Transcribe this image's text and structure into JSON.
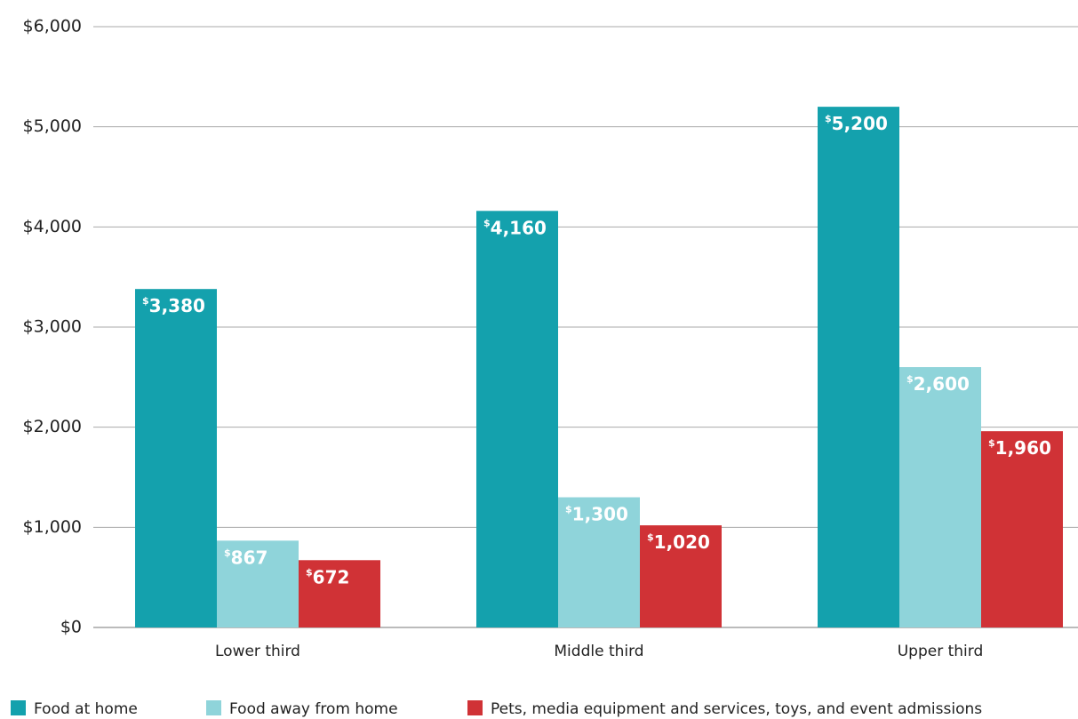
{
  "chart_data": {
    "type": "bar",
    "categories": [
      "Lower third",
      "Middle third",
      "Upper third"
    ],
    "series": [
      {
        "name": "Food at home",
        "color": "#14a1ad",
        "values": [
          3380,
          4160,
          5200
        ],
        "value_labels": [
          "$3,380",
          "$4,160",
          "$5,200"
        ]
      },
      {
        "name": "Food away from home",
        "color": "#8fd4da",
        "values": [
          867,
          1300,
          2600
        ],
        "value_labels": [
          "$867",
          "$1,300",
          "$2,600"
        ]
      },
      {
        "name": "Pets, media equipment and services, toys, and event admissions",
        "color": "#d03236",
        "values": [
          672,
          1020,
          1960
        ],
        "value_labels": [
          "$672",
          "$1,020",
          "$1,960"
        ]
      }
    ],
    "ylim": [
      0,
      6000
    ],
    "yticks": [
      {
        "value": 0,
        "label": "$0"
      },
      {
        "value": 1000,
        "label": "$1,000"
      },
      {
        "value": 2000,
        "label": "$2,000"
      },
      {
        "value": 3000,
        "label": "$3,000"
      },
      {
        "value": 4000,
        "label": "$4,000"
      },
      {
        "value": 5000,
        "label": "$5,000"
      },
      {
        "value": 6000,
        "label": "$6,000"
      }
    ],
    "grid": true,
    "legend": "bottom-left"
  }
}
